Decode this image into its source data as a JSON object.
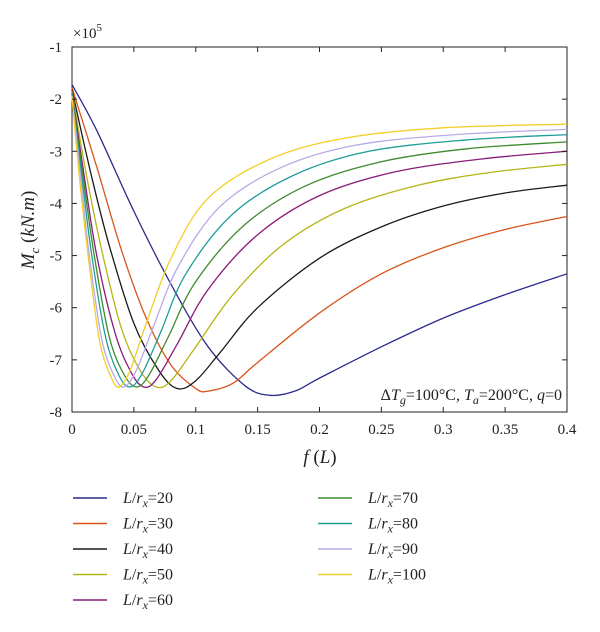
{
  "chart_data": {
    "type": "line",
    "title": "",
    "xlabel": "f (L)",
    "ylabel": "M_c (kN.m)",
    "y_scale_label": "×10^5",
    "xlim": [
      0,
      0.4
    ],
    "ylim": [
      -8,
      -1
    ],
    "xticks": [
      0,
      0.05,
      0.1,
      0.15,
      0.2,
      0.25,
      0.3,
      0.35,
      0.4
    ],
    "xtick_labels": [
      "0",
      "0.05",
      "0.1",
      "0.15",
      "0.2",
      "0.25",
      "0.3",
      "0.35",
      "0.4"
    ],
    "yticks": [
      -8,
      -7,
      -6,
      -5,
      -4,
      -3,
      -2,
      -1
    ],
    "ytick_labels": [
      "-8",
      "-7",
      "-6",
      "-5",
      "-4",
      "-3",
      "-2",
      "-1"
    ],
    "grid": false,
    "annotation": "ΔT_g=100°C, T_a=200°C, q=0",
    "legend_placement": "below",
    "series": [
      {
        "name": "L/r_x=20",
        "color": "#2b2b8c",
        "points": [
          [
            0,
            -1.72
          ],
          [
            0.02,
            -2.6
          ],
          [
            0.05,
            -4.15
          ],
          [
            0.08,
            -5.55
          ],
          [
            0.11,
            -6.75
          ],
          [
            0.14,
            -7.5
          ],
          [
            0.16,
            -7.68
          ],
          [
            0.18,
            -7.6
          ],
          [
            0.2,
            -7.35
          ],
          [
            0.25,
            -6.75
          ],
          [
            0.3,
            -6.2
          ],
          [
            0.35,
            -5.75
          ],
          [
            0.4,
            -5.35
          ]
        ]
      },
      {
        "name": "L/r_x=30",
        "color": "#d9541a",
        "points": [
          [
            0,
            -1.78
          ],
          [
            0.02,
            -3.3
          ],
          [
            0.04,
            -4.9
          ],
          [
            0.06,
            -6.2
          ],
          [
            0.08,
            -7.1
          ],
          [
            0.1,
            -7.55
          ],
          [
            0.11,
            -7.6
          ],
          [
            0.13,
            -7.45
          ],
          [
            0.15,
            -7.05
          ],
          [
            0.2,
            -6.1
          ],
          [
            0.25,
            -5.35
          ],
          [
            0.3,
            -4.85
          ],
          [
            0.35,
            -4.5
          ],
          [
            0.4,
            -4.25
          ]
        ]
      },
      {
        "name": "L/r_x=40",
        "color": "#1a1a1a",
        "points": [
          [
            0,
            -1.82
          ],
          [
            0.015,
            -3.4
          ],
          [
            0.03,
            -4.8
          ],
          [
            0.05,
            -6.3
          ],
          [
            0.07,
            -7.2
          ],
          [
            0.085,
            -7.55
          ],
          [
            0.1,
            -7.4
          ],
          [
            0.12,
            -6.85
          ],
          [
            0.15,
            -6.0
          ],
          [
            0.2,
            -5.05
          ],
          [
            0.25,
            -4.45
          ],
          [
            0.3,
            -4.05
          ],
          [
            0.35,
            -3.8
          ],
          [
            0.4,
            -3.65
          ]
        ]
      },
      {
        "name": "L/r_x=50",
        "color": "#b5b516",
        "points": [
          [
            0,
            -1.85
          ],
          [
            0.012,
            -3.5
          ],
          [
            0.025,
            -5.0
          ],
          [
            0.04,
            -6.4
          ],
          [
            0.055,
            -7.2
          ],
          [
            0.068,
            -7.52
          ],
          [
            0.08,
            -7.4
          ],
          [
            0.1,
            -6.75
          ],
          [
            0.13,
            -5.75
          ],
          [
            0.17,
            -4.8
          ],
          [
            0.22,
            -4.1
          ],
          [
            0.28,
            -3.65
          ],
          [
            0.34,
            -3.4
          ],
          [
            0.4,
            -3.25
          ]
        ]
      },
      {
        "name": "L/r_x=60",
        "color": "#8b1a7a",
        "points": [
          [
            0,
            -1.88
          ],
          [
            0.01,
            -3.5
          ],
          [
            0.02,
            -5.0
          ],
          [
            0.035,
            -6.5
          ],
          [
            0.048,
            -7.25
          ],
          [
            0.058,
            -7.52
          ],
          [
            0.068,
            -7.38
          ],
          [
            0.085,
            -6.7
          ],
          [
            0.11,
            -5.65
          ],
          [
            0.15,
            -4.6
          ],
          [
            0.2,
            -3.85
          ],
          [
            0.26,
            -3.4
          ],
          [
            0.33,
            -3.15
          ],
          [
            0.4,
            -3.0
          ]
        ]
      },
      {
        "name": "L/r_x=70",
        "color": "#3f8a2e",
        "points": [
          [
            0,
            -1.9
          ],
          [
            0.009,
            -3.5
          ],
          [
            0.018,
            -5.0
          ],
          [
            0.03,
            -6.55
          ],
          [
            0.042,
            -7.28
          ],
          [
            0.052,
            -7.52
          ],
          [
            0.062,
            -7.3
          ],
          [
            0.078,
            -6.55
          ],
          [
            0.1,
            -5.5
          ],
          [
            0.14,
            -4.4
          ],
          [
            0.19,
            -3.65
          ],
          [
            0.25,
            -3.2
          ],
          [
            0.32,
            -2.95
          ],
          [
            0.4,
            -2.82
          ]
        ]
      },
      {
        "name": "L/r_x=80",
        "color": "#1f9e96",
        "points": [
          [
            0,
            -1.92
          ],
          [
            0.008,
            -3.5
          ],
          [
            0.016,
            -5.0
          ],
          [
            0.027,
            -6.55
          ],
          [
            0.038,
            -7.3
          ],
          [
            0.047,
            -7.52
          ],
          [
            0.057,
            -7.25
          ],
          [
            0.072,
            -6.45
          ],
          [
            0.092,
            -5.35
          ],
          [
            0.13,
            -4.2
          ],
          [
            0.18,
            -3.45
          ],
          [
            0.24,
            -3.0
          ],
          [
            0.32,
            -2.78
          ],
          [
            0.4,
            -2.68
          ]
        ]
      },
      {
        "name": "L/r_x=90",
        "color": "#b9a9e6",
        "points": [
          [
            0,
            -1.94
          ],
          [
            0.007,
            -3.5
          ],
          [
            0.014,
            -5.0
          ],
          [
            0.024,
            -6.6
          ],
          [
            0.034,
            -7.3
          ],
          [
            0.042,
            -7.52
          ],
          [
            0.052,
            -7.2
          ],
          [
            0.066,
            -6.35
          ],
          [
            0.086,
            -5.2
          ],
          [
            0.12,
            -4.05
          ],
          [
            0.17,
            -3.3
          ],
          [
            0.23,
            -2.88
          ],
          [
            0.31,
            -2.68
          ],
          [
            0.4,
            -2.58
          ]
        ]
      },
      {
        "name": "L/r_x=100",
        "color": "#f2cf2a",
        "points": [
          [
            0,
            -1.95
          ],
          [
            0.006,
            -3.5
          ],
          [
            0.013,
            -5.0
          ],
          [
            0.022,
            -6.6
          ],
          [
            0.031,
            -7.3
          ],
          [
            0.038,
            -7.52
          ],
          [
            0.047,
            -7.2
          ],
          [
            0.06,
            -6.3
          ],
          [
            0.08,
            -5.05
          ],
          [
            0.11,
            -3.9
          ],
          [
            0.16,
            -3.15
          ],
          [
            0.22,
            -2.75
          ],
          [
            0.3,
            -2.55
          ],
          [
            0.4,
            -2.48
          ]
        ]
      }
    ]
  }
}
